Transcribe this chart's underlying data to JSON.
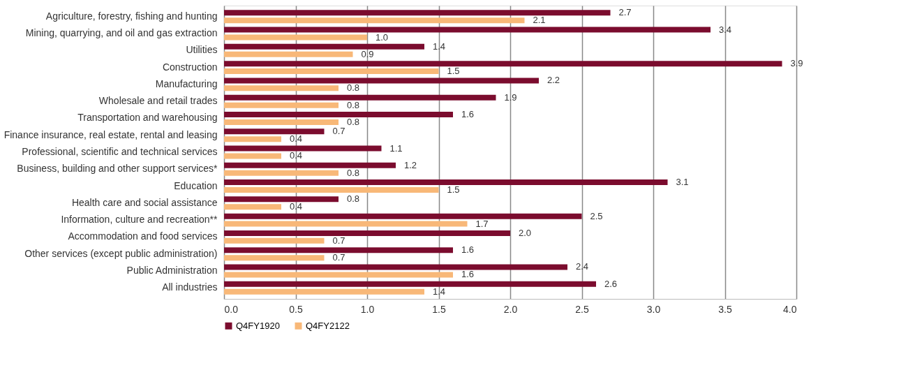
{
  "chart_data": {
    "type": "bar",
    "orientation": "horizontal",
    "categories": [
      "Agriculture, forestry, fishing and hunting",
      "Mining, quarrying, and oil and gas extraction",
      "Utilities",
      "Construction",
      "Manufacturing",
      "Wholesale and retail trades",
      "Transportation and warehousing",
      "Finance insurance, real estate, rental and leasing",
      "Professional, scientific and technical services",
      "Business, building and other support services*",
      "Education",
      "Health care and social assistance",
      "Information, culture and recreation**",
      "Accommodation and food services",
      "Other services (except public administration)",
      "Public Administration",
      "All industries"
    ],
    "series": [
      {
        "name": "Q4FY1920",
        "color": "#7b0c2e",
        "values": [
          2.7,
          3.4,
          1.4,
          3.9,
          2.2,
          1.9,
          1.6,
          0.7,
          1.1,
          1.2,
          3.1,
          0.8,
          2.5,
          2.0,
          1.6,
          2.4,
          2.6
        ],
        "value_labels": [
          "2.7",
          "3.4",
          "1.4",
          "3.9",
          "2.2",
          "1.9",
          "1.6",
          "0.7",
          "1.1",
          "1.2",
          "3.1",
          "0.8",
          "2.5",
          "2.0",
          "1.6",
          "2.4",
          "2.6"
        ]
      },
      {
        "name": "Q4FY2122",
        "color": "#f8b878",
        "values": [
          2.1,
          1.0,
          0.9,
          1.5,
          0.8,
          0.8,
          0.8,
          0.4,
          0.4,
          0.8,
          1.5,
          0.4,
          1.7,
          0.7,
          0.7,
          1.6,
          1.4
        ],
        "value_labels": [
          "2.1",
          "1.0",
          "0.9",
          "1.5",
          "0.8",
          "0.8",
          "0.8",
          "0.4",
          "0.4",
          "0.8",
          "1.5",
          "0.4",
          "1.7",
          "0.7",
          "0.7",
          "1.6",
          "1.4"
        ]
      }
    ],
    "xlim": [
      0,
      4
    ],
    "xticks": [
      {
        "value": 0,
        "label": "0.0"
      },
      0.5,
      {
        "value": 1,
        "label": "1.0"
      },
      1.5,
      {
        "value": 2,
        "label": "2.0"
      },
      2.5,
      {
        "value": 3,
        "label": "3.0"
      },
      3.5,
      {
        "value": 4,
        "label": "4.0"
      }
    ],
    "grid": "x",
    "legend": "bottom"
  }
}
